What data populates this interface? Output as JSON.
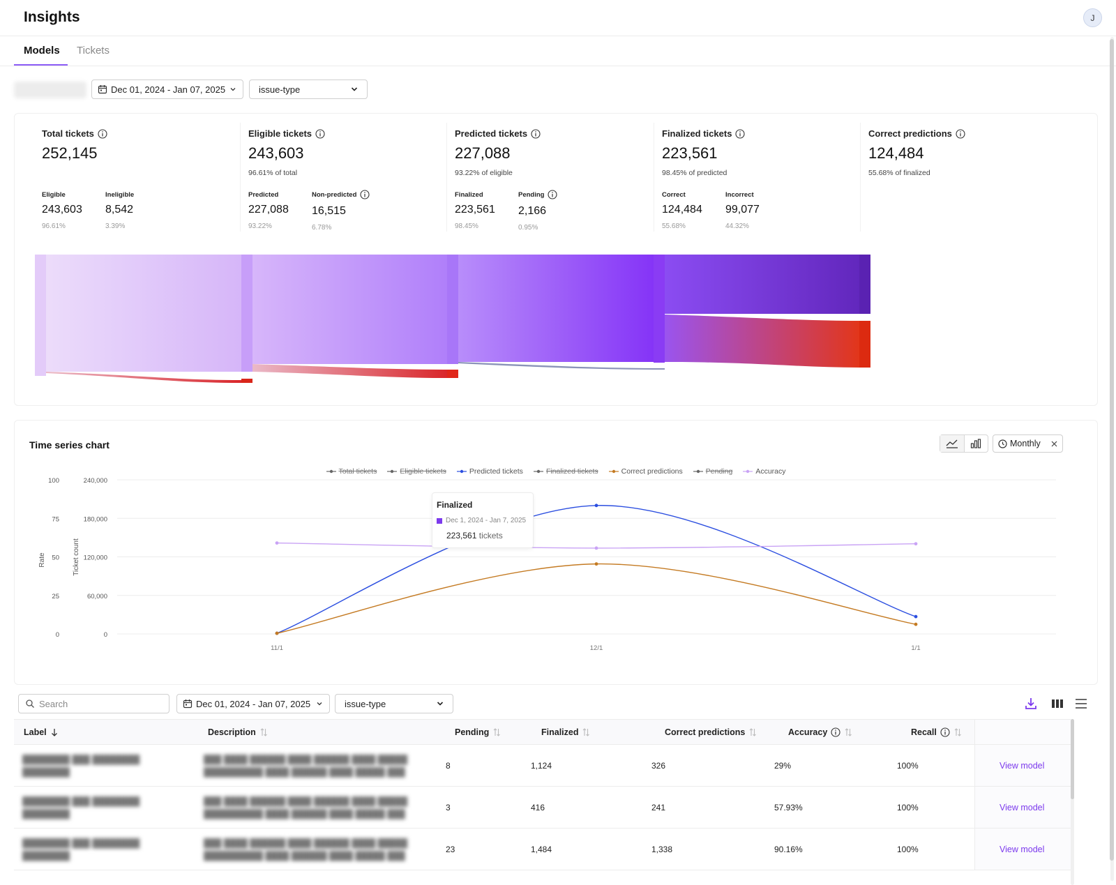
{
  "app": {
    "title": "Insights",
    "avatar_initial": "J"
  },
  "tabs": [
    {
      "label": "Models",
      "active": true
    },
    {
      "label": "Tickets",
      "active": false
    }
  ],
  "filters": {
    "date_range": "Dec 01, 2024 - Jan 07, 2025",
    "field_select": "issue-type"
  },
  "kpis": [
    {
      "title": "Total tickets",
      "value": "252,145",
      "subtitle": "",
      "breakdown": [
        {
          "label": "Eligible",
          "value": "243,603",
          "pct": "96.61%"
        },
        {
          "label": "Ineligible",
          "value": "8,542",
          "pct": "3.39%"
        }
      ]
    },
    {
      "title": "Eligible tickets",
      "value": "243,603",
      "subtitle": "96.61% of total",
      "breakdown": [
        {
          "label": "Predicted",
          "value": "227,088",
          "pct": "93.22%"
        },
        {
          "label": "Non-predicted",
          "value": "16,515",
          "pct": "6.78%"
        }
      ]
    },
    {
      "title": "Predicted tickets",
      "value": "227,088",
      "subtitle": "93.22% of eligible",
      "breakdown": [
        {
          "label": "Finalized",
          "value": "223,561",
          "pct": "98.45%"
        },
        {
          "label": "Pending",
          "value": "2,166",
          "pct": "0.95%"
        }
      ]
    },
    {
      "title": "Finalized tickets",
      "value": "223,561",
      "subtitle": "98.45% of predicted",
      "breakdown": [
        {
          "label": "Correct",
          "value": "124,484",
          "pct": "55.68%"
        },
        {
          "label": "Incorrect",
          "value": "99,077",
          "pct": "44.32%"
        }
      ]
    },
    {
      "title": "Correct predictions",
      "value": "124,484",
      "subtitle": "55.68% of finalized",
      "breakdown": []
    }
  ],
  "colors": {
    "accent": "#7c3aed",
    "predicted": "#2b4ee0",
    "correct": "#c47a22",
    "accuracy": "#c9a3f5",
    "muted": "#666666",
    "negative": "#dc2626"
  },
  "timeseries": {
    "title": "Time series chart",
    "interval": "Monthly",
    "tooltip": {
      "title": "Finalized",
      "range": "Dec 1, 2024 - Jan 7, 2025",
      "value": "223,561",
      "unit": "tickets"
    }
  },
  "chart_data": {
    "type": "line",
    "x": [
      "11/1",
      "12/1",
      "1/1"
    ],
    "ylabel_left": "Rate",
    "ylabel_right": "Ticket count",
    "y_rate_ticks": [
      "100",
      "75",
      "50",
      "25",
      "0"
    ],
    "y_count_ticks": [
      "240,000",
      "180,000",
      "120,000",
      "60,000",
      "0"
    ],
    "ylim_rate": [
      0,
      100
    ],
    "ylim_count": [
      0,
      240000
    ],
    "legend_position": "top-center",
    "legend": [
      {
        "name": "Total tickets",
        "visible": false
      },
      {
        "name": "Eligible tickets",
        "visible": false
      },
      {
        "name": "Predicted tickets",
        "visible": true
      },
      {
        "name": "Finalized tickets",
        "visible": false
      },
      {
        "name": "Correct predictions",
        "visible": true
      },
      {
        "name": "Pending",
        "visible": false
      },
      {
        "name": "Accuracy",
        "visible": true
      }
    ],
    "series": [
      {
        "name": "Predicted tickets",
        "axis": "count",
        "color": "#2b4ee0",
        "values": [
          1000,
          200000,
          27000
        ]
      },
      {
        "name": "Correct predictions",
        "axis": "count",
        "color": "#c47a22",
        "values": [
          1000,
          109000,
          15000
        ]
      },
      {
        "name": "Accuracy",
        "axis": "rate",
        "color": "#c9a3f5",
        "values": [
          59,
          55.7,
          58.5
        ]
      }
    ]
  },
  "table": {
    "search_placeholder": "Search",
    "columns": [
      "Label",
      "Description",
      "Pending",
      "Finalized",
      "Correct predictions",
      "Accuracy",
      "Recall"
    ],
    "action_label": "View model",
    "rows": [
      {
        "pending": "8",
        "finalized": "1,124",
        "correct": "326",
        "accuracy": "29%",
        "recall": "100%"
      },
      {
        "pending": "3",
        "finalized": "416",
        "correct": "241",
        "accuracy": "57.93%",
        "recall": "100%"
      },
      {
        "pending": "23",
        "finalized": "1,484",
        "correct": "1,338",
        "accuracy": "90.16%",
        "recall": "100%"
      }
    ]
  }
}
